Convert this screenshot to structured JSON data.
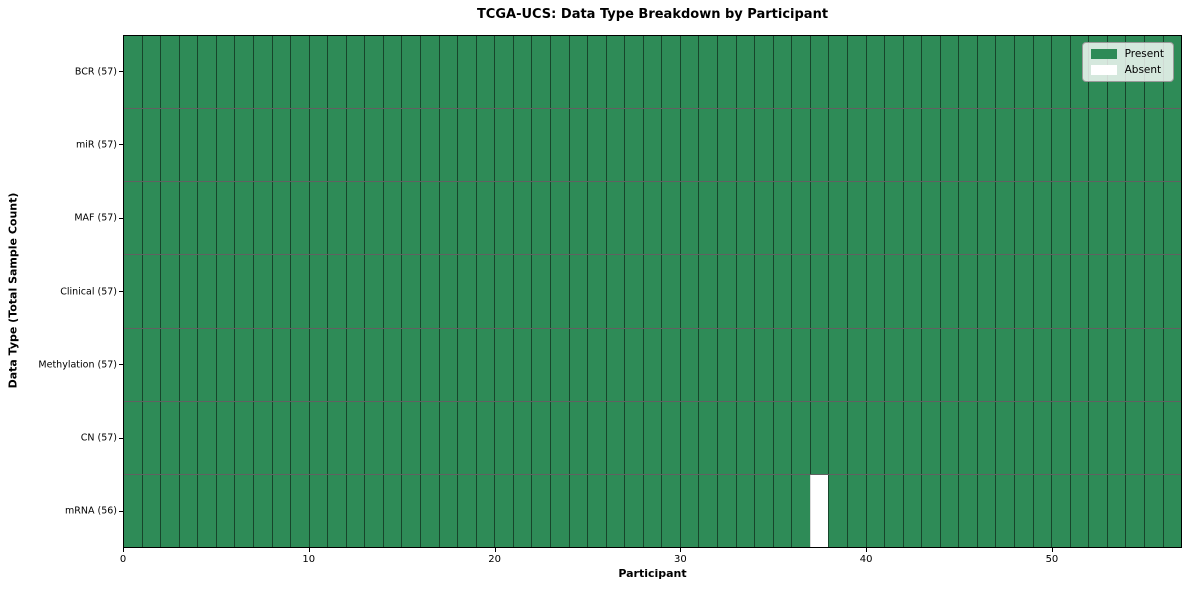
{
  "title": "TCGA-UCS: Data Type Breakdown by Participant",
  "chart_data": {
    "type": "heatmap",
    "title": "TCGA-UCS: Data Type Breakdown by Participant",
    "xlabel": "Participant",
    "ylabel": "Data Type (Total Sample Count)",
    "x_range": [
      0,
      57
    ],
    "n_participants": 57,
    "x_ticks": [
      0,
      10,
      20,
      30,
      40,
      50
    ],
    "rows": [
      {
        "label": "BCR (57)",
        "data_type": "BCR",
        "total": 57,
        "absent_indices": []
      },
      {
        "label": "miR (57)",
        "data_type": "miR",
        "total": 57,
        "absent_indices": []
      },
      {
        "label": "MAF (57)",
        "data_type": "MAF",
        "total": 57,
        "absent_indices": []
      },
      {
        "label": "Clinical (57)",
        "data_type": "Clinical",
        "total": 57,
        "absent_indices": []
      },
      {
        "label": "Methylation (57)",
        "data_type": "Methylation",
        "total": 57,
        "absent_indices": []
      },
      {
        "label": "CN (57)",
        "data_type": "CN",
        "total": 57,
        "absent_indices": []
      },
      {
        "label": "mRNA (56)",
        "data_type": "mRNA",
        "total": 56,
        "absent_indices": [
          37
        ]
      }
    ],
    "legend": [
      {
        "label": "Present",
        "color": "#2e8b57"
      },
      {
        "label": "Absent",
        "color": "#ffffff"
      }
    ],
    "colors": {
      "present": "#2e8b57",
      "absent": "#ffffff",
      "grid_line": "#1e3f2c",
      "spine": "#000000"
    },
    "grid": true,
    "legend_position": "upper right"
  }
}
